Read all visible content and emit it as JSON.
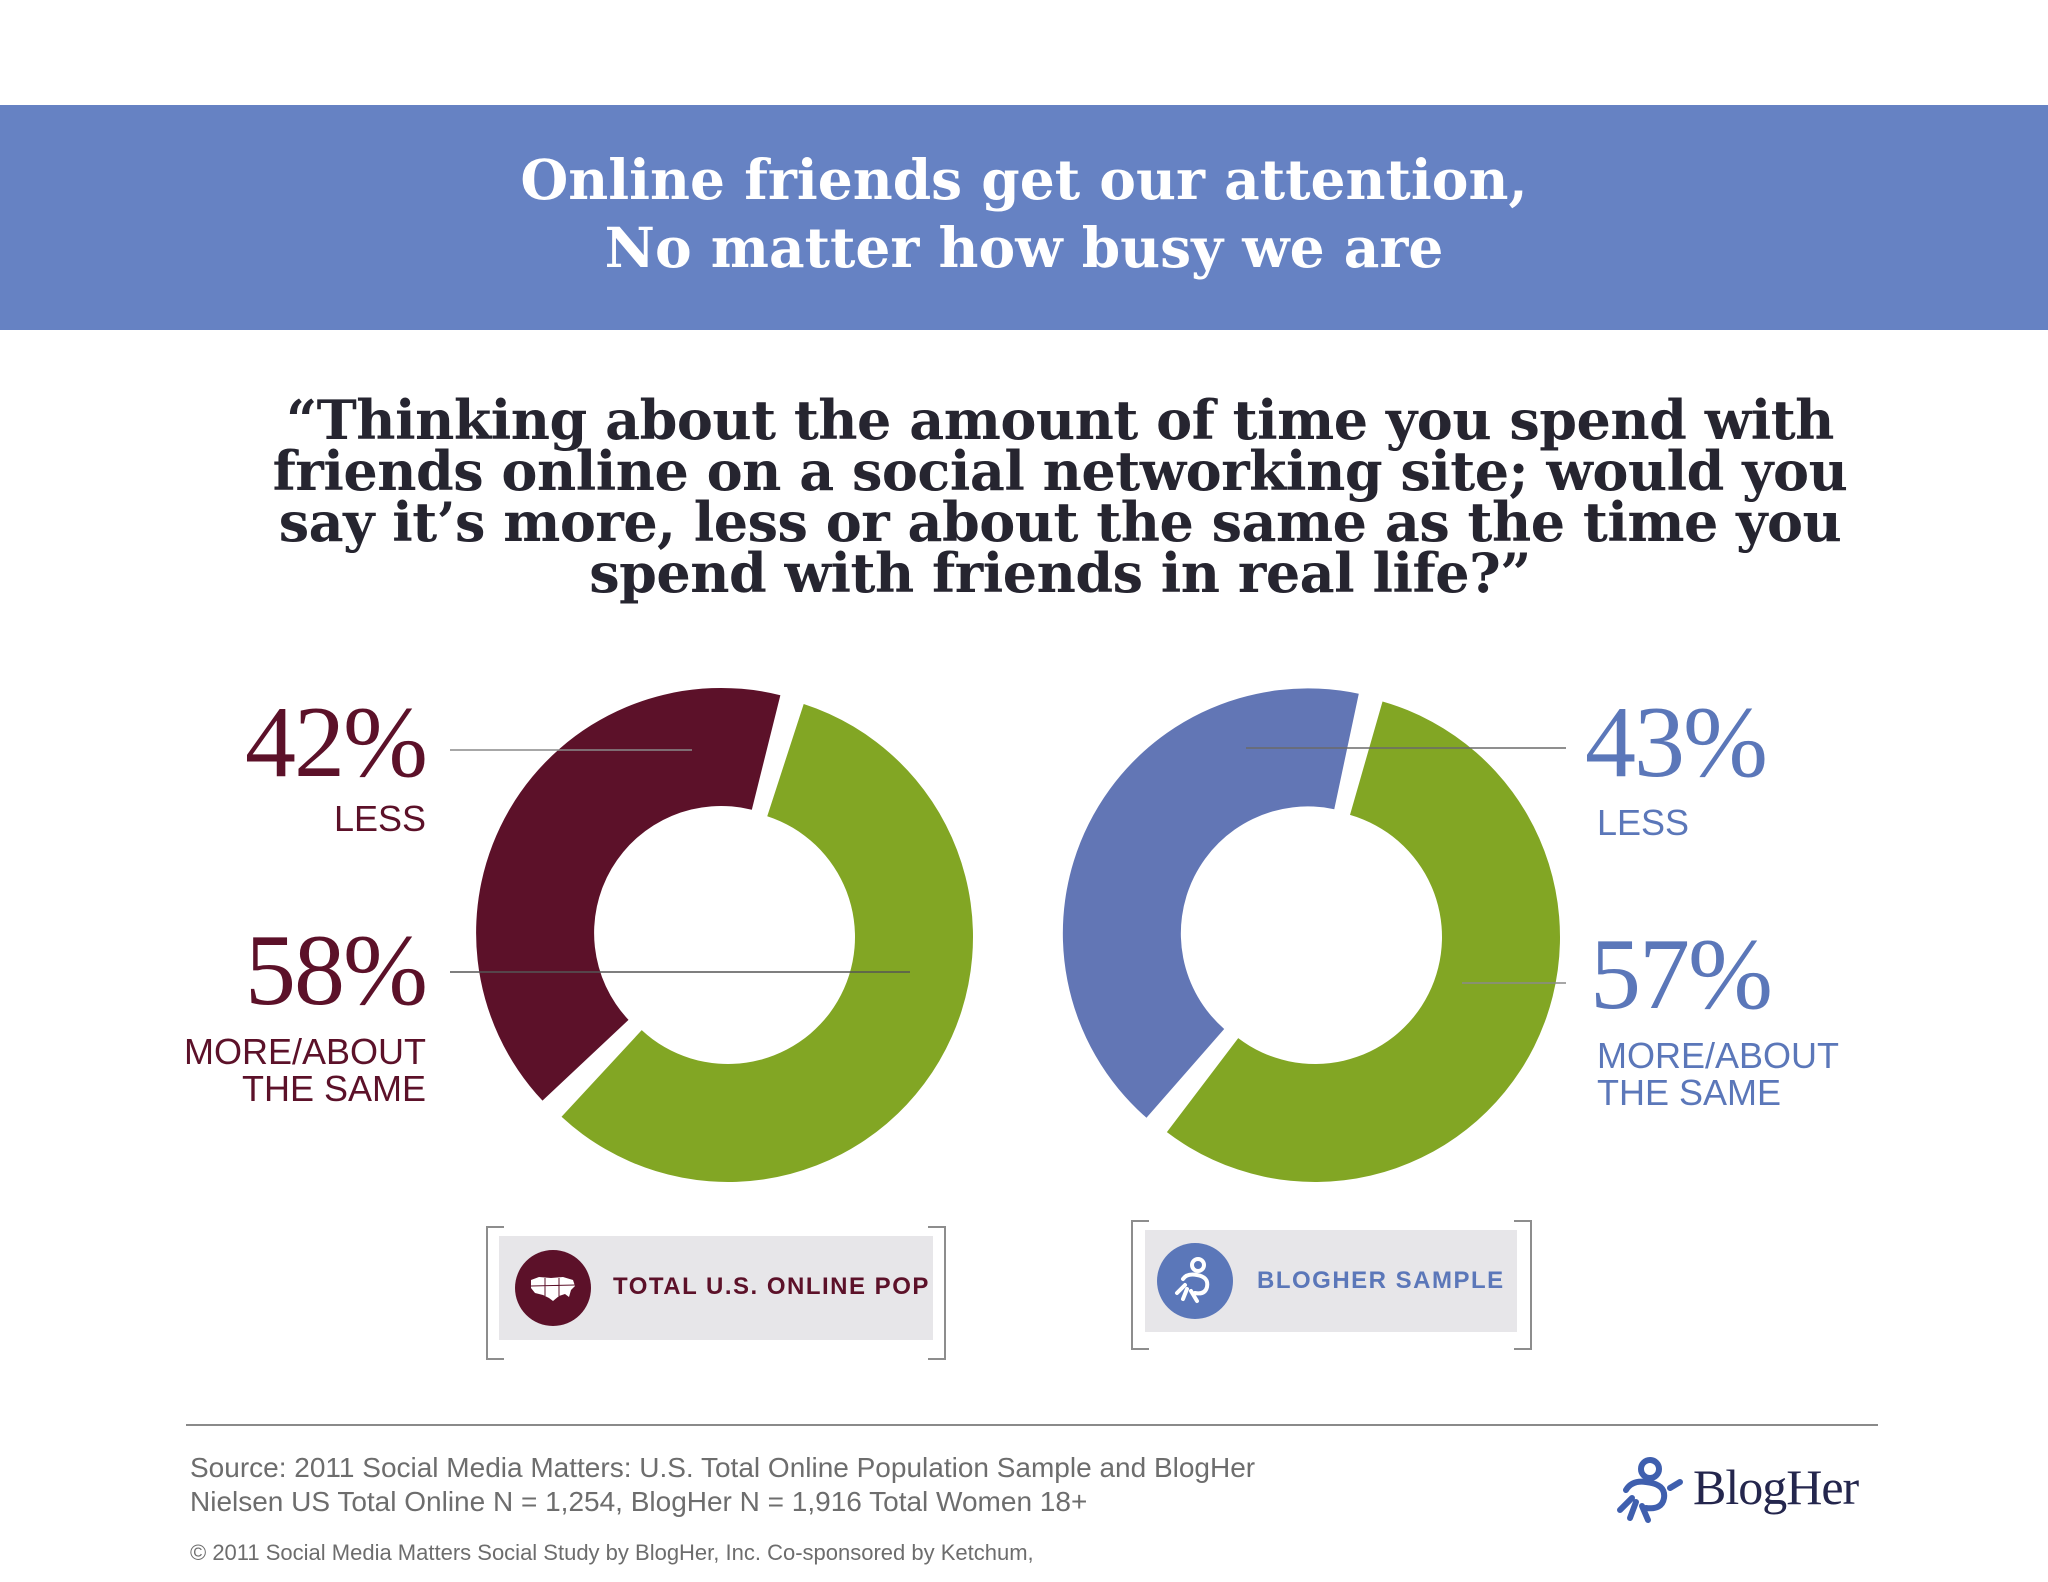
{
  "banner": {
    "line1": "Online friends get our attention,",
    "line2": "No matter how busy we are"
  },
  "question": "“Thinking about the amount of time you spend with friends online on a social networking site; would you say it’s more, less or about the same as the time you spend with friends in real life?”",
  "colors": {
    "banner": "#6682c3",
    "maroon": "#5c1129",
    "green": "#82a624",
    "blue": "#6276b5",
    "question_text": "#262530"
  },
  "chart_data": [
    {
      "type": "pie",
      "subtype": "donut",
      "categories": [
        "LESS",
        "MORE/ABOUT THE SAME"
      ],
      "values": [
        42,
        58
      ],
      "value_labels": [
        "42%",
        "58%"
      ],
      "colors": [
        "#5c1129",
        "#82a624"
      ],
      "caption": "TOTAL U.S. ONLINE POP",
      "caption_icon": "us-map-icon"
    },
    {
      "type": "pie",
      "subtype": "donut",
      "categories": [
        "LESS",
        "MORE/ABOUT THE SAME"
      ],
      "values": [
        43,
        57
      ],
      "value_labels": [
        "43%",
        "57%"
      ],
      "colors": [
        "#6276b5",
        "#82a624"
      ],
      "caption": "BLOGHER SAMPLE",
      "caption_icon": "blogher-figure-icon"
    }
  ],
  "labels": {
    "left_less_pct": "42%",
    "left_less": "LESS",
    "left_more_pct": "58%",
    "left_more_1": "MORE/ABOUT",
    "left_more_2": "THE SAME",
    "right_less_pct": "43%",
    "right_less": "LESS",
    "right_more_pct": "57%",
    "right_more_1": "MORE/ABOUT",
    "right_more_2": "THE SAME"
  },
  "footer": {
    "source_line1": "Source: 2011 Social Media Matters: U.S. Total Online Population Sample and BlogHer",
    "source_line2": "Nielsen US Total Online N = 1,254, BlogHer N = 1,916 Total Women 18+",
    "copyright": "© 2011 Social Media Matters Social Study by BlogHer, Inc. Co-sponsored by Ketchum,",
    "logo_text": "BlogHer"
  }
}
